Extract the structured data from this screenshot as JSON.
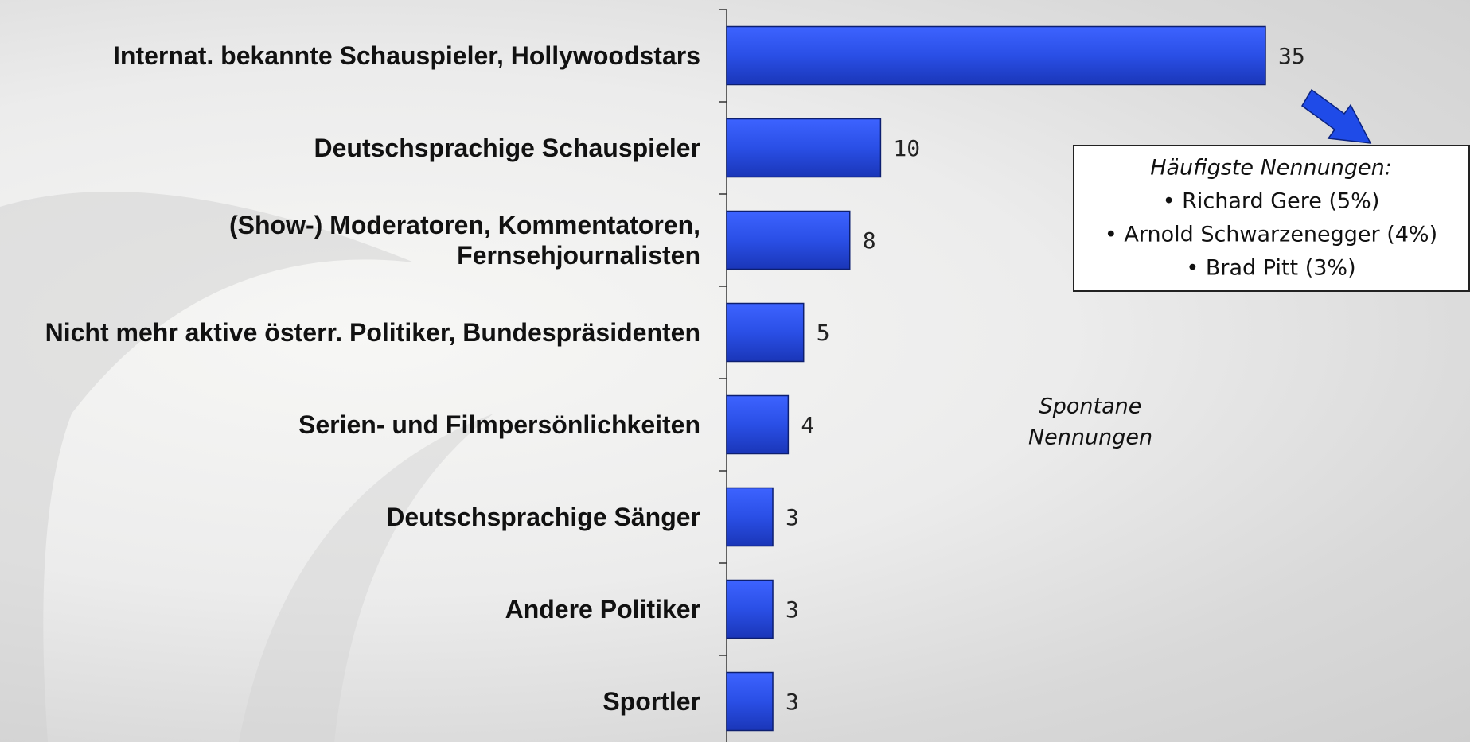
{
  "chart_data": {
    "type": "hbar",
    "categories": [
      "Internat. bekannte Schauspieler, Hollywoodstars",
      "Deutschsprachige Schauspieler",
      "(Show-) Moderatoren, Kommentatoren,\nFernsehjournalisten",
      "Nicht mehr aktive österr. Politiker, Bundespräsidenten",
      "Serien- und Filmpersönlichkeiten",
      "Deutschsprachige Sänger",
      "Andere Politiker",
      "Sportler"
    ],
    "values": [
      35,
      10,
      8,
      5,
      4,
      3,
      3,
      3
    ],
    "color": "#2a4fe0",
    "box": {
      "title": "Häufigste Nennungen:",
      "items": [
        "• Richard Gere (5%)",
        "• Arnold Schwarzenegger (4%)",
        "• Brad Pitt (3%)"
      ]
    },
    "note": [
      "Spontane",
      "Nennungen"
    ]
  }
}
